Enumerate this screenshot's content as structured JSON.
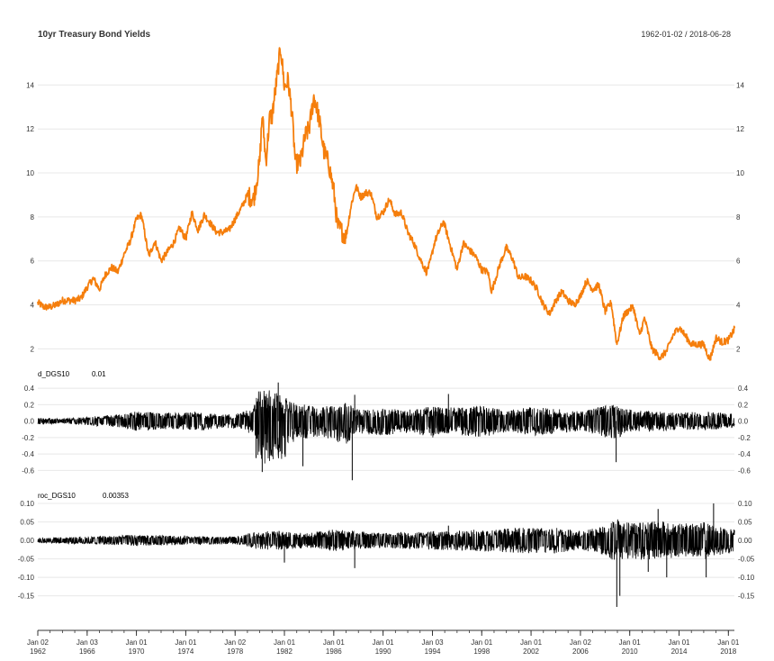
{
  "chart_data": {
    "type": "line",
    "title": "10yr Treasury Bond Yields",
    "date_range": "1962-01-02 / 2018-06-28",
    "x_ticks": [
      {
        "date": "1962-01-02",
        "label": [
          "Jan 02",
          "1962"
        ]
      },
      {
        "date": "1966-01-03",
        "label": [
          "Jan 03",
          "1966"
        ]
      },
      {
        "date": "1970-01-01",
        "label": [
          "Jan 01",
          "1970"
        ]
      },
      {
        "date": "1974-01-01",
        "label": [
          "Jan 01",
          "1974"
        ]
      },
      {
        "date": "1978-01-02",
        "label": [
          "Jan 02",
          "1978"
        ]
      },
      {
        "date": "1982-01-01",
        "label": [
          "Jan 01",
          "1982"
        ]
      },
      {
        "date": "1986-01-01",
        "label": [
          "Jan 01",
          "1986"
        ]
      },
      {
        "date": "1990-01-01",
        "label": [
          "Jan 01",
          "1990"
        ]
      },
      {
        "date": "1994-01-03",
        "label": [
          "Jan 03",
          "1994"
        ]
      },
      {
        "date": "1998-01-01",
        "label": [
          "Jan 01",
          "1998"
        ]
      },
      {
        "date": "2002-01-01",
        "label": [
          "Jan 01",
          "2002"
        ]
      },
      {
        "date": "2006-01-02",
        "label": [
          "Jan 02",
          "2006"
        ]
      },
      {
        "date": "2010-01-01",
        "label": [
          "Jan 01",
          "2010"
        ]
      },
      {
        "date": "2014-01-01",
        "label": [
          "Jan 01",
          "2014"
        ]
      },
      {
        "date": "2018-01-01",
        "label": [
          "Jan 01",
          "2018"
        ]
      }
    ],
    "panels": [
      {
        "name": "DGS10",
        "color": "#f57e0c",
        "ylim": [
          1.4,
          15.9
        ],
        "y_ticks": [
          "2",
          "4",
          "6",
          "8",
          "10",
          "12",
          "14"
        ],
        "series": {
          "x": [
            1962.0,
            1962.5,
            1963.0,
            1963.5,
            1964.0,
            1964.5,
            1965.0,
            1965.5,
            1966.0,
            1966.5,
            1967.0,
            1967.5,
            1968.0,
            1968.5,
            1969.0,
            1969.5,
            1970.0,
            1970.4,
            1970.6,
            1971.0,
            1971.5,
            1972.0,
            1972.5,
            1973.0,
            1973.5,
            1974.0,
            1974.5,
            1975.0,
            1975.5,
            1976.0,
            1976.5,
            1977.0,
            1977.5,
            1978.0,
            1978.5,
            1979.0,
            1979.5,
            1980.0,
            1980.2,
            1980.5,
            1980.8,
            1981.0,
            1981.3,
            1981.7,
            1982.0,
            1982.3,
            1982.6,
            1982.9,
            1983.3,
            1983.7,
            1984.0,
            1984.4,
            1984.8,
            1985.2,
            1985.6,
            1986.0,
            1986.3,
            1986.7,
            1987.0,
            1987.4,
            1987.8,
            1988.2,
            1988.6,
            1989.0,
            1989.5,
            1990.0,
            1990.5,
            1991.0,
            1991.5,
            1992.0,
            1992.5,
            1993.0,
            1993.5,
            1993.8,
            1994.2,
            1994.9,
            1995.5,
            1996.0,
            1996.5,
            1997.0,
            1997.5,
            1998.0,
            1998.5,
            1998.8,
            1999.5,
            2000.0,
            2000.5,
            2001.0,
            2001.5,
            2002.0,
            2002.5,
            2003.0,
            2003.5,
            2004.0,
            2004.5,
            2005.0,
            2005.5,
            2006.0,
            2006.5,
            2007.0,
            2007.5,
            2008.0,
            2008.5,
            2008.95,
            2009.5,
            2010.0,
            2010.3,
            2010.8,
            2011.2,
            2011.8,
            2012.5,
            2013.0,
            2013.5,
            2014.0,
            2014.5,
            2015.0,
            2015.5,
            2016.0,
            2016.5,
            2017.0,
            2017.5,
            2018.0,
            2018.5
          ],
          "y": [
            4.1,
            3.9,
            3.9,
            4.0,
            4.2,
            4.2,
            4.2,
            4.3,
            4.8,
            5.2,
            4.7,
            5.4,
            5.7,
            5.5,
            6.3,
            6.9,
            7.9,
            8.1,
            7.5,
            6.2,
            6.9,
            6.0,
            6.4,
            6.8,
            7.5,
            7.0,
            8.2,
            7.4,
            8.1,
            7.7,
            7.3,
            7.3,
            7.4,
            7.9,
            8.4,
            9.0,
            8.8,
            10.5,
            12.7,
            10.5,
            12.5,
            12.6,
            13.9,
            15.7,
            13.9,
            14.2,
            12.8,
            10.4,
            10.5,
            11.7,
            12.0,
            13.5,
            12.5,
            11.0,
            10.4,
            9.2,
            7.6,
            7.3,
            7.1,
            8.5,
            9.4,
            8.9,
            9.1,
            9.1,
            8.0,
            8.2,
            8.8,
            8.1,
            8.2,
            7.3,
            6.8,
            6.1,
            5.5,
            5.9,
            6.9,
            7.8,
            6.6,
            5.6,
            6.8,
            6.5,
            6.2,
            5.6,
            5.5,
            4.6,
            5.9,
            6.6,
            6.1,
            5.2,
            5.3,
            5.1,
            4.7,
            4.0,
            3.6,
            4.2,
            4.6,
            4.2,
            4.0,
            4.4,
            5.1,
            4.7,
            4.9,
            3.7,
            4.1,
            2.2,
            3.5,
            3.8,
            3.9,
            2.6,
            3.4,
            2.0,
            1.6,
            1.9,
            2.6,
            3.0,
            2.6,
            2.2,
            2.2,
            2.2,
            1.5,
            2.5,
            2.3,
            2.4,
            2.9
          ]
        }
      },
      {
        "name": "d_DGS10",
        "last_value": "0.01",
        "color": "#000000",
        "ylim": [
          -0.75,
          0.5
        ],
        "y_ticks": [
          "0.4",
          "0.2",
          "0.0",
          "-0.2",
          "-0.4",
          "-0.6"
        ],
        "envelope": {
          "x": [
            1962.0,
            1964.0,
            1966.0,
            1967.5,
            1969.0,
            1970.0,
            1972.0,
            1974.0,
            1975.0,
            1977.0,
            1978.5,
            1979.5,
            1980.0,
            1981.0,
            1982.0,
            1983.0,
            1984.0,
            1985.0,
            1986.0,
            1987.0,
            1988.0,
            1990.0,
            1992.0,
            1994.0,
            1995.0,
            1998.0,
            2000.0,
            2002.0,
            2004.0,
            2006.0,
            2008.0,
            2009.0,
            2010.0,
            2012.0,
            2014.0,
            2016.0,
            2018.5
          ],
          "lo": [
            -0.04,
            -0.03,
            -0.05,
            -0.07,
            -0.08,
            -0.12,
            -0.1,
            -0.1,
            -0.12,
            -0.08,
            -0.1,
            -0.18,
            -0.55,
            -0.5,
            -0.45,
            -0.2,
            -0.22,
            -0.18,
            -0.25,
            -0.28,
            -0.15,
            -0.18,
            -0.14,
            -0.2,
            -0.15,
            -0.2,
            -0.13,
            -0.18,
            -0.15,
            -0.12,
            -0.2,
            -0.22,
            -0.12,
            -0.14,
            -0.1,
            -0.12,
            -0.08
          ],
          "hi": [
            0.04,
            0.03,
            0.05,
            0.07,
            0.09,
            0.12,
            0.1,
            0.1,
            0.12,
            0.08,
            0.1,
            0.2,
            0.4,
            0.38,
            0.3,
            0.2,
            0.2,
            0.17,
            0.22,
            0.22,
            0.14,
            0.15,
            0.14,
            0.18,
            0.17,
            0.19,
            0.14,
            0.17,
            0.15,
            0.12,
            0.19,
            0.2,
            0.14,
            0.12,
            0.1,
            0.12,
            0.09
          ]
        },
        "spikes": [
          {
            "x": 1979.7,
            "y": -0.45
          },
          {
            "x": 1980.2,
            "y": -0.62
          },
          {
            "x": 1981.5,
            "y": 0.47
          },
          {
            "x": 1983.5,
            "y": -0.55
          },
          {
            "x": 1987.5,
            "y": -0.72
          },
          {
            "x": 1987.7,
            "y": 0.32
          },
          {
            "x": 1995.3,
            "y": 0.33
          },
          {
            "x": 2008.9,
            "y": -0.5
          }
        ]
      },
      {
        "name": "roc_DGS10",
        "last_value": "0.00353",
        "color": "#000000",
        "ylim": [
          -0.185,
          0.105
        ],
        "y_ticks": [
          "0.10",
          "0.05",
          "0.00",
          "-0.05",
          "-0.10",
          "-0.15"
        ],
        "envelope": {
          "x": [
            1962.0,
            1966.0,
            1970.0,
            1974.0,
            1978.0,
            1980.0,
            1982.0,
            1984.0,
            1986.0,
            1988.0,
            1990.0,
            1994.0,
            1998.0,
            2002.0,
            2004.0,
            2006.0,
            2008.0,
            2008.9,
            2010.0,
            2012.0,
            2014.0,
            2016.0,
            2018.5
          ],
          "lo": [
            -0.007,
            -0.01,
            -0.015,
            -0.012,
            -0.01,
            -0.025,
            -0.025,
            -0.02,
            -0.03,
            -0.025,
            -0.02,
            -0.025,
            -0.03,
            -0.035,
            -0.035,
            -0.025,
            -0.04,
            -0.06,
            -0.05,
            -0.055,
            -0.045,
            -0.05,
            -0.03
          ],
          "hi": [
            0.007,
            0.01,
            0.015,
            0.012,
            0.01,
            0.025,
            0.025,
            0.02,
            0.03,
            0.025,
            0.02,
            0.025,
            0.03,
            0.035,
            0.035,
            0.025,
            0.04,
            0.06,
            0.05,
            0.055,
            0.045,
            0.05,
            0.03
          ]
        },
        "spikes": [
          {
            "x": 1982.0,
            "y": -0.06
          },
          {
            "x": 1987.7,
            "y": -0.075
          },
          {
            "x": 1995.3,
            "y": 0.04
          },
          {
            "x": 2008.95,
            "y": -0.18
          },
          {
            "x": 2009.2,
            "y": -0.15
          },
          {
            "x": 2011.5,
            "y": -0.085
          },
          {
            "x": 2012.3,
            "y": 0.085
          },
          {
            "x": 2013.0,
            "y": -0.1
          },
          {
            "x": 2016.2,
            "y": -0.1
          },
          {
            "x": 2016.8,
            "y": 0.1
          }
        ]
      }
    ]
  }
}
